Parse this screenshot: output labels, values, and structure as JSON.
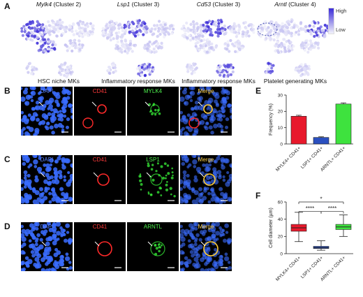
{
  "panel_a": {
    "label": "A",
    "umaps": [
      {
        "gene": "Mylk4",
        "cluster": "(Cluster 2)",
        "caption": "HSC niche MKs"
      },
      {
        "gene": "Lsp1",
        "cluster": "(Cluster 3)",
        "caption": "Inflammatory response MKs"
      },
      {
        "gene": "Cd53",
        "cluster": "(Cluster 3)",
        "caption": "Inflammatory response MKs"
      },
      {
        "gene": "Arntl",
        "cluster": "(Cluster 4)",
        "caption": "Platelet generating MKs"
      }
    ],
    "legend": {
      "high": "High",
      "low": "Low",
      "high_color": "#3a2bd8",
      "low_color": "#f2f2fa"
    }
  },
  "micro_rows": [
    {
      "label": "B",
      "channels": [
        "DAPI",
        "CD41",
        "MYLK4",
        "Merge"
      ]
    },
    {
      "label": "C",
      "channels": [
        "DAPI",
        "CD41",
        "LSP1",
        "Merge"
      ]
    },
    {
      "label": "D",
      "channels": [
        "DAPI",
        "CD41",
        "ARNTL",
        "Merge"
      ]
    }
  ],
  "channel_colors": {
    "dapi": "#3a6cff",
    "cd41": "#ff2a2a",
    "marker": "#35e035",
    "merge": "#ffcc33"
  },
  "panel_e": {
    "label": "E"
  },
  "panel_f": {
    "label": "F"
  },
  "chart_data": [
    {
      "type": "bar",
      "categories": [
        "MYLK4+ CD41+",
        "LSP1+ CD41+",
        "ARNTL+ CD41+"
      ],
      "values": [
        17,
        4,
        24.5
      ],
      "errors": [
        0.6,
        0.4,
        0.7
      ],
      "colors": [
        "#e8192c",
        "#2a4fbf",
        "#3ee23e"
      ],
      "ylabel": "Frequency (%)",
      "ylim": [
        0,
        30
      ],
      "yticks": [
        0,
        10,
        20,
        30
      ],
      "grid": false
    },
    {
      "type": "box",
      "categories": [
        "MYLK4+ CD41+",
        "LSP1+ CD41+",
        "ARNTL+ CD41+"
      ],
      "boxes": [
        {
          "min": 14,
          "q1": 26,
          "median": 30,
          "q3": 34,
          "max": 48
        },
        {
          "min": 4,
          "q1": 6,
          "median": 7,
          "q3": 8.5,
          "max": 15
        },
        {
          "min": 20,
          "q1": 28,
          "median": 31,
          "q3": 34,
          "max": 45
        }
      ],
      "colors": [
        "#e8192c",
        "#2a4fbf",
        "#3ee23e"
      ],
      "ylabel": "Cell diameter (µm)",
      "ylim": [
        0,
        60
      ],
      "yticks": [
        0,
        20,
        40,
        60
      ],
      "significance": [
        {
          "from": 0,
          "to": 2,
          "label": "*"
        },
        {
          "from": 0,
          "to": 1,
          "label": "****"
        },
        {
          "from": 1,
          "to": 2,
          "label": "****"
        }
      ],
      "grid": false
    }
  ]
}
